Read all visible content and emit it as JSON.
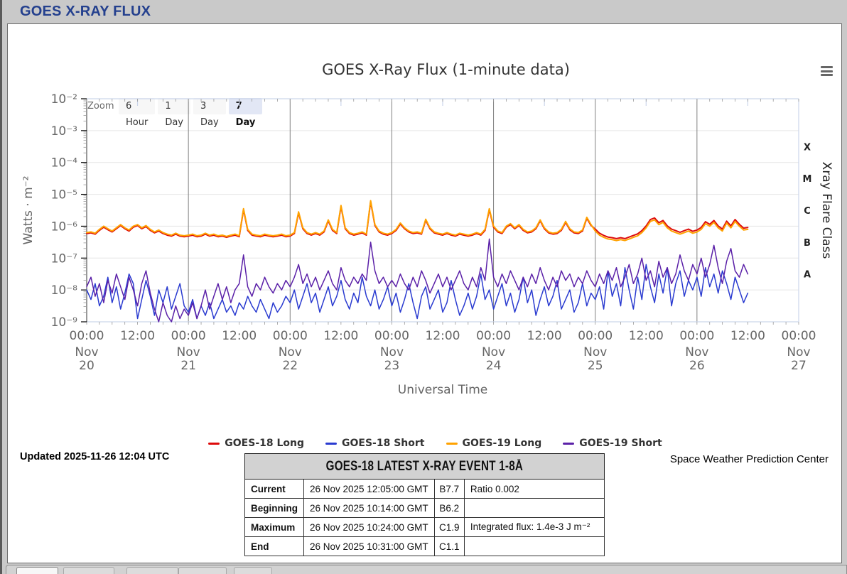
{
  "page": {
    "header_title": "GOES X-RAY FLUX"
  },
  "chart": {
    "title": "GOES X-Ray Flux (1-minute data)",
    "zoom_label": "Zoom",
    "zoom_buttons": [
      {
        "label": "6 Hour",
        "selected": false
      },
      {
        "label": "1 Day",
        "selected": false
      },
      {
        "label": "3 Day",
        "selected": false
      },
      {
        "label": "7 Day",
        "selected": true
      }
    ]
  },
  "footer": {
    "updated": "Updated 2025-11-26 12:04 UTC",
    "credit": "Space Weather Prediction Center"
  },
  "event_table": {
    "title": "GOES-18 LATEST X-RAY EVENT 1-8Å",
    "rows": [
      {
        "label": "Current",
        "time": "26 Nov 2025 12:05:00 GMT",
        "class": "B7.7",
        "note": "Ratio 0.002"
      },
      {
        "label": "Beginning",
        "time": "26 Nov 2025 10:14:00 GMT",
        "class": "B6.2",
        "note": ""
      },
      {
        "label": "Maximum",
        "time": "26 Nov 2025 10:24:00 GMT",
        "class": "C1.9",
        "note": "Integrated flux: 1.4e-3 J m⁻²"
      },
      {
        "label": "End",
        "time": "26 Nov 2025 10:31:00 GMT",
        "class": "C1.1",
        "note": ""
      }
    ]
  },
  "chart_data": {
    "type": "line",
    "title": "GOES X-Ray Flux (1-minute data)",
    "xlabel": "Universal Time",
    "ylabel": "Watts · m⁻²",
    "y_scale": "log10",
    "ylim_log10": [
      -9,
      -2
    ],
    "y_tick_labels": [
      "10⁻²",
      "10⁻³",
      "10⁻⁴",
      "10⁻⁵",
      "10⁻⁶",
      "10⁻⁷",
      "10⁻⁸",
      "10⁻⁹"
    ],
    "x_range_hours": [
      0,
      168
    ],
    "x_tick_every_hours": 12,
    "x_tick_labels": [
      "00:00",
      "12:00",
      "00:00",
      "12:00",
      "00:00",
      "12:00",
      "00:00",
      "12:00",
      "00:00",
      "12:00",
      "00:00",
      "12:00",
      "00:00",
      "12:00",
      "00:00"
    ],
    "days": [
      {
        "month": "Nov",
        "day": "20"
      },
      {
        "month": "Nov",
        "day": "21"
      },
      {
        "month": "Nov",
        "day": "22"
      },
      {
        "month": "Nov",
        "day": "23"
      },
      {
        "month": "Nov",
        "day": "24"
      },
      {
        "month": "Nov",
        "day": "25"
      },
      {
        "month": "Nov",
        "day": "26"
      },
      {
        "month": "Nov",
        "day": "27"
      }
    ],
    "right_axis": {
      "title": "Xray Flare Class",
      "labels": [
        {
          "text": "X",
          "log_center": -3.5
        },
        {
          "text": "M",
          "log_center": -4.5
        },
        {
          "text": "C",
          "log_center": -5.5
        },
        {
          "text": "B",
          "log_center": -6.5
        },
        {
          "text": "A",
          "log_center": -7.5
        }
      ]
    },
    "grid": {
      "h_gridlines": "every decade",
      "v_gridlines": "every midnight"
    },
    "legend_position": "bottom-center",
    "draw_order": [
      1,
      3,
      0,
      2
    ],
    "x_step_hours": 1,
    "series": [
      {
        "name": "GOES-18 Long",
        "color": "#dd0b0b",
        "width": 2,
        "log10_values": [
          -6.23,
          -6.21,
          -6.25,
          -6.13,
          -6.03,
          -6.11,
          -6.18,
          -6.08,
          -5.98,
          -6.08,
          -6.15,
          -6.03,
          -5.98,
          -6.08,
          -6.01,
          -6.13,
          -6.21,
          -6.15,
          -6.23,
          -6.28,
          -6.31,
          -6.25,
          -6.31,
          -6.33,
          -6.31,
          -6.28,
          -6.33,
          -6.31,
          -6.25,
          -6.31,
          -6.28,
          -6.33,
          -6.31,
          -6.35,
          -6.31,
          -6.28,
          -6.33,
          -5.48,
          -6.13,
          -6.28,
          -6.31,
          -6.33,
          -6.28,
          -6.31,
          -6.33,
          -6.31,
          -6.28,
          -6.33,
          -6.31,
          -6.23,
          -5.58,
          -6.08,
          -6.23,
          -6.28,
          -6.23,
          -6.28,
          -6.18,
          -5.83,
          -6.13,
          -6.23,
          -5.38,
          -6.08,
          -6.23,
          -6.28,
          -6.25,
          -6.21,
          -6.28,
          -5.23,
          -5.98,
          -6.18,
          -6.25,
          -6.28,
          -6.23,
          -6.13,
          -5.93,
          -6.08,
          -6.18,
          -6.23,
          -6.21,
          -6.25,
          -5.81,
          -6.08,
          -6.21,
          -6.25,
          -6.28,
          -6.23,
          -6.28,
          -6.31,
          -6.25,
          -6.28,
          -6.31,
          -6.28,
          -6.23,
          -6.28,
          -6.13,
          -5.48,
          -6.03,
          -6.18,
          -6.23,
          -6.03,
          -5.95,
          -6.08,
          -5.98,
          -6.13,
          -6.21,
          -6.18,
          -6.08,
          -5.83,
          -6.08,
          -6.21,
          -6.25,
          -6.23,
          -6.13,
          -5.88,
          -6.11,
          -6.21,
          -6.23,
          -6.15,
          -5.75,
          -5.98,
          -6.09,
          -6.22,
          -6.29,
          -6.34,
          -6.36,
          -6.39,
          -6.36,
          -6.39,
          -6.34,
          -6.29,
          -6.24,
          -6.14,
          -5.99,
          -5.79,
          -5.74,
          -5.89,
          -5.82,
          -5.99,
          -6.09,
          -6.14,
          -6.19,
          -6.14,
          -6.09,
          -6.16,
          -6.12,
          -6.04,
          -5.86,
          -5.94,
          -5.82,
          -5.99,
          -6.09,
          -5.84,
          -5.99,
          -5.79,
          -5.94,
          -6.06,
          -6.04
        ]
      },
      {
        "name": "GOES-18 Short",
        "color": "#2a3bd0",
        "width": 1.5,
        "log10_values": [
          -8.0,
          -8.3,
          -7.8,
          -8.5,
          -8.2,
          -7.6,
          -8.4,
          -7.9,
          -8.6,
          -8.1,
          -7.5,
          -7.8,
          -8.9,
          -8.3,
          -7.7,
          -8.2,
          -8.8,
          -8.0,
          -8.4,
          -7.9,
          -8.6,
          -8.2,
          -7.8,
          -8.5,
          -8.7,
          -8.3,
          -8.9,
          -8.5,
          -8.8,
          -8.4,
          -8.9,
          -8.6,
          -8.3,
          -8.7,
          -8.5,
          -8.8,
          -8.4,
          -8.6,
          -8.2,
          -8.5,
          -8.7,
          -8.3,
          -8.6,
          -8.9,
          -8.4,
          -8.7,
          -8.5,
          -8.2,
          -8.4,
          -8.0,
          -8.6,
          -8.2,
          -7.8,
          -8.4,
          -8.1,
          -8.7,
          -8.3,
          -7.9,
          -8.5,
          -8.2,
          -7.7,
          -8.3,
          -8.6,
          -8.1,
          -8.4,
          -7.6,
          -8.2,
          -8.5,
          -8.0,
          -8.6,
          -8.3,
          -7.9,
          -8.5,
          -8.1,
          -8.7,
          -8.3,
          -7.8,
          -8.4,
          -8.9,
          -8.2,
          -7.9,
          -8.6,
          -8.3,
          -8.0,
          -8.7,
          -8.4,
          -7.7,
          -8.3,
          -8.8,
          -8.5,
          -8.1,
          -8.6,
          -8.2,
          -7.5,
          -8.3,
          -8.0,
          -8.6,
          -8.2,
          -7.8,
          -8.5,
          -8.1,
          -8.7,
          -8.3,
          -7.6,
          -8.4,
          -8.0,
          -8.8,
          -8.3,
          -7.9,
          -8.5,
          -8.2,
          -7.7,
          -8.6,
          -8.3,
          -8.0,
          -8.7,
          -8.4,
          -7.8,
          -8.5,
          -8.1,
          -8.3,
          -7.9,
          -8.6,
          -7.4,
          -8.2,
          -7.8,
          -8.5,
          -7.3,
          -8.0,
          -8.6,
          -7.6,
          -8.3,
          -7.2,
          -7.9,
          -8.4,
          -7.5,
          -8.1,
          -7.3,
          -8.5,
          -7.8,
          -7.4,
          -8.2,
          -7.7,
          -8.0,
          -7.6,
          -8.2,
          -7.3,
          -7.9,
          -7.5,
          -8.1,
          -7.4,
          -7.8,
          -8.3,
          -7.6,
          -8.0,
          -8.4,
          -8.1
        ]
      },
      {
        "name": "GOES-19 Long",
        "color": "#ffa200",
        "width": 2,
        "log10_values": [
          -6.2,
          -6.18,
          -6.22,
          -6.1,
          -6.0,
          -6.08,
          -6.15,
          -6.05,
          -5.95,
          -6.05,
          -6.12,
          -6.0,
          -5.95,
          -6.05,
          -5.98,
          -6.1,
          -6.18,
          -6.12,
          -6.2,
          -6.25,
          -6.28,
          -6.22,
          -6.28,
          -6.3,
          -6.28,
          -6.25,
          -6.3,
          -6.28,
          -6.22,
          -6.28,
          -6.25,
          -6.3,
          -6.28,
          -6.32,
          -6.28,
          -6.25,
          -6.3,
          -5.45,
          -6.1,
          -6.25,
          -6.28,
          -6.3,
          -6.25,
          -6.28,
          -6.3,
          -6.28,
          -6.25,
          -6.3,
          -6.28,
          -6.2,
          -5.55,
          -6.05,
          -6.2,
          -6.25,
          -6.2,
          -6.25,
          -6.15,
          -5.8,
          -6.1,
          -6.2,
          -5.35,
          -6.05,
          -6.2,
          -6.25,
          -6.22,
          -6.18,
          -6.25,
          -5.2,
          -5.95,
          -6.15,
          -6.22,
          -6.25,
          -6.2,
          -6.1,
          -5.9,
          -6.05,
          -6.15,
          -6.2,
          -6.18,
          -6.22,
          -5.78,
          -6.05,
          -6.18,
          -6.22,
          -6.25,
          -6.2,
          -6.25,
          -6.28,
          -6.22,
          -6.25,
          -6.28,
          -6.25,
          -6.2,
          -6.25,
          -6.1,
          -5.45,
          -6.0,
          -6.15,
          -6.2,
          -6.0,
          -5.92,
          -6.05,
          -5.95,
          -6.1,
          -6.18,
          -6.15,
          -6.05,
          -5.8,
          -6.05,
          -6.18,
          -6.22,
          -6.2,
          -6.1,
          -5.85,
          -6.08,
          -6.18,
          -6.2,
          -6.12,
          -5.72,
          -5.95,
          -6.15,
          -6.28,
          -6.35,
          -6.4,
          -6.42,
          -6.45,
          -6.42,
          -6.45,
          -6.4,
          -6.35,
          -6.3,
          -6.2,
          -6.05,
          -5.85,
          -5.8,
          -5.95,
          -5.88,
          -6.05,
          -6.15,
          -6.2,
          -6.25,
          -6.2,
          -6.15,
          -6.22,
          -6.18,
          -6.1,
          -5.92,
          -6.0,
          -5.88,
          -6.05,
          -6.15,
          -5.9,
          -6.05,
          -5.85,
          -6.0,
          -6.12,
          -6.1
        ]
      },
      {
        "name": "GOES-19 Short",
        "color": "#5b21a8",
        "width": 1.5,
        "log10_values": [
          -7.9,
          -7.6,
          -8.2,
          -7.8,
          -8.4,
          -7.7,
          -8.1,
          -7.5,
          -7.9,
          -8.3,
          -7.6,
          -8.0,
          -8.5,
          -7.8,
          -7.4,
          -8.1,
          -8.6,
          -9.0,
          -8.4,
          -8.8,
          -9.0,
          -8.5,
          -8.9,
          -8.6,
          -8.8,
          -8.4,
          -8.9,
          -8.5,
          -8.0,
          -8.6,
          -8.2,
          -7.8,
          -8.3,
          -7.9,
          -8.4,
          -8.0,
          -7.8,
          -6.9,
          -7.9,
          -8.2,
          -7.8,
          -8.0,
          -7.6,
          -7.9,
          -8.1,
          -7.8,
          -8.0,
          -7.7,
          -7.9,
          -7.6,
          -7.2,
          -7.8,
          -7.5,
          -7.9,
          -7.6,
          -8.0,
          -7.7,
          -7.4,
          -7.8,
          -8.0,
          -7.3,
          -7.7,
          -7.9,
          -7.6,
          -7.8,
          -7.5,
          -7.7,
          -6.5,
          -7.4,
          -7.8,
          -7.6,
          -7.9,
          -7.7,
          -7.9,
          -7.5,
          -7.8,
          -8.0,
          -7.6,
          -7.9,
          -7.4,
          -7.7,
          -8.1,
          -7.8,
          -7.5,
          -7.9,
          -7.6,
          -8.0,
          -7.7,
          -7.4,
          -7.8,
          -8.0,
          -7.6,
          -7.9,
          -7.3,
          -7.7,
          -6.4,
          -7.6,
          -7.9,
          -7.5,
          -7.8,
          -7.4,
          -7.7,
          -8.0,
          -7.6,
          -7.9,
          -7.5,
          -7.8,
          -7.3,
          -7.7,
          -8.0,
          -7.6,
          -7.9,
          -7.4,
          -7.7,
          -7.5,
          -7.9,
          -7.6,
          -7.8,
          -7.4,
          -7.7,
          -7.9,
          -7.5,
          -7.8,
          -7.4,
          -7.7,
          -7.3,
          -7.9,
          -7.6,
          -7.2,
          -7.8,
          -7.5,
          -7.0,
          -7.7,
          -7.4,
          -7.9,
          -7.1,
          -7.6,
          -7.3,
          -7.8,
          -7.5,
          -6.9,
          -7.4,
          -7.7,
          -7.2,
          -7.5,
          -7.0,
          -7.6,
          -7.2,
          -6.6,
          -7.3,
          -7.8,
          -7.1,
          -6.7,
          -7.4,
          -7.6,
          -7.2,
          -7.5
        ]
      }
    ]
  }
}
